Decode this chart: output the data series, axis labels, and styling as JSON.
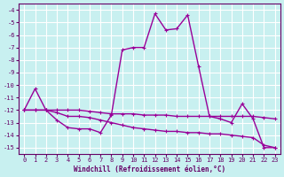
{
  "title": "",
  "xlabel": "Windchill (Refroidissement éolien,°C)",
  "background_color": "#c8f0f0",
  "grid_color": "#ffffff",
  "line_color": "#990099",
  "xlim": [
    -0.5,
    23.5
  ],
  "ylim": [
    -15.5,
    -3.5
  ],
  "xticks": [
    0,
    1,
    2,
    3,
    4,
    5,
    6,
    7,
    8,
    9,
    10,
    11,
    12,
    13,
    14,
    15,
    16,
    17,
    18,
    19,
    20,
    21,
    22,
    23
  ],
  "yticks": [
    -4,
    -5,
    -6,
    -7,
    -8,
    -9,
    -10,
    -11,
    -12,
    -13,
    -14,
    -15
  ],
  "curve1_x": [
    0,
    1,
    2,
    3,
    4,
    5,
    6,
    7,
    8,
    9,
    10,
    11,
    12,
    13,
    14,
    15,
    16,
    17,
    18,
    19,
    20,
    21,
    22,
    23
  ],
  "curve1_y": [
    -12.0,
    -10.3,
    -12.0,
    -12.8,
    -13.4,
    -13.5,
    -13.5,
    -13.8,
    -12.4,
    -7.2,
    -7.0,
    -7.0,
    -4.3,
    -5.6,
    -5.5,
    -4.4,
    -8.5,
    -12.5,
    -12.7,
    -13.0,
    -11.5,
    -12.7,
    -15.0,
    -15.0
  ],
  "curve2_x": [
    0,
    1,
    2,
    3,
    4,
    5,
    6,
    7,
    8,
    9,
    10,
    11,
    12,
    13,
    14,
    15,
    16,
    17,
    18,
    19,
    20,
    21,
    22,
    23
  ],
  "curve2_y": [
    -12.0,
    -12.0,
    -12.0,
    -12.0,
    -12.0,
    -12.0,
    -12.1,
    -12.2,
    -12.3,
    -12.3,
    -12.3,
    -12.4,
    -12.4,
    -12.4,
    -12.5,
    -12.5,
    -12.5,
    -12.5,
    -12.5,
    -12.5,
    -12.5,
    -12.5,
    -12.6,
    -12.7
  ],
  "curve3_x": [
    0,
    1,
    2,
    3,
    4,
    5,
    6,
    7,
    8,
    9,
    10,
    11,
    12,
    13,
    14,
    15,
    16,
    17,
    18,
    19,
    20,
    21,
    22,
    23
  ],
  "curve3_y": [
    -12.0,
    -12.0,
    -12.0,
    -12.2,
    -12.5,
    -12.5,
    -12.6,
    -12.8,
    -13.0,
    -13.2,
    -13.4,
    -13.5,
    -13.6,
    -13.7,
    -13.7,
    -13.8,
    -13.8,
    -13.9,
    -13.9,
    -14.0,
    -14.1,
    -14.2,
    -14.8,
    -15.0
  ]
}
